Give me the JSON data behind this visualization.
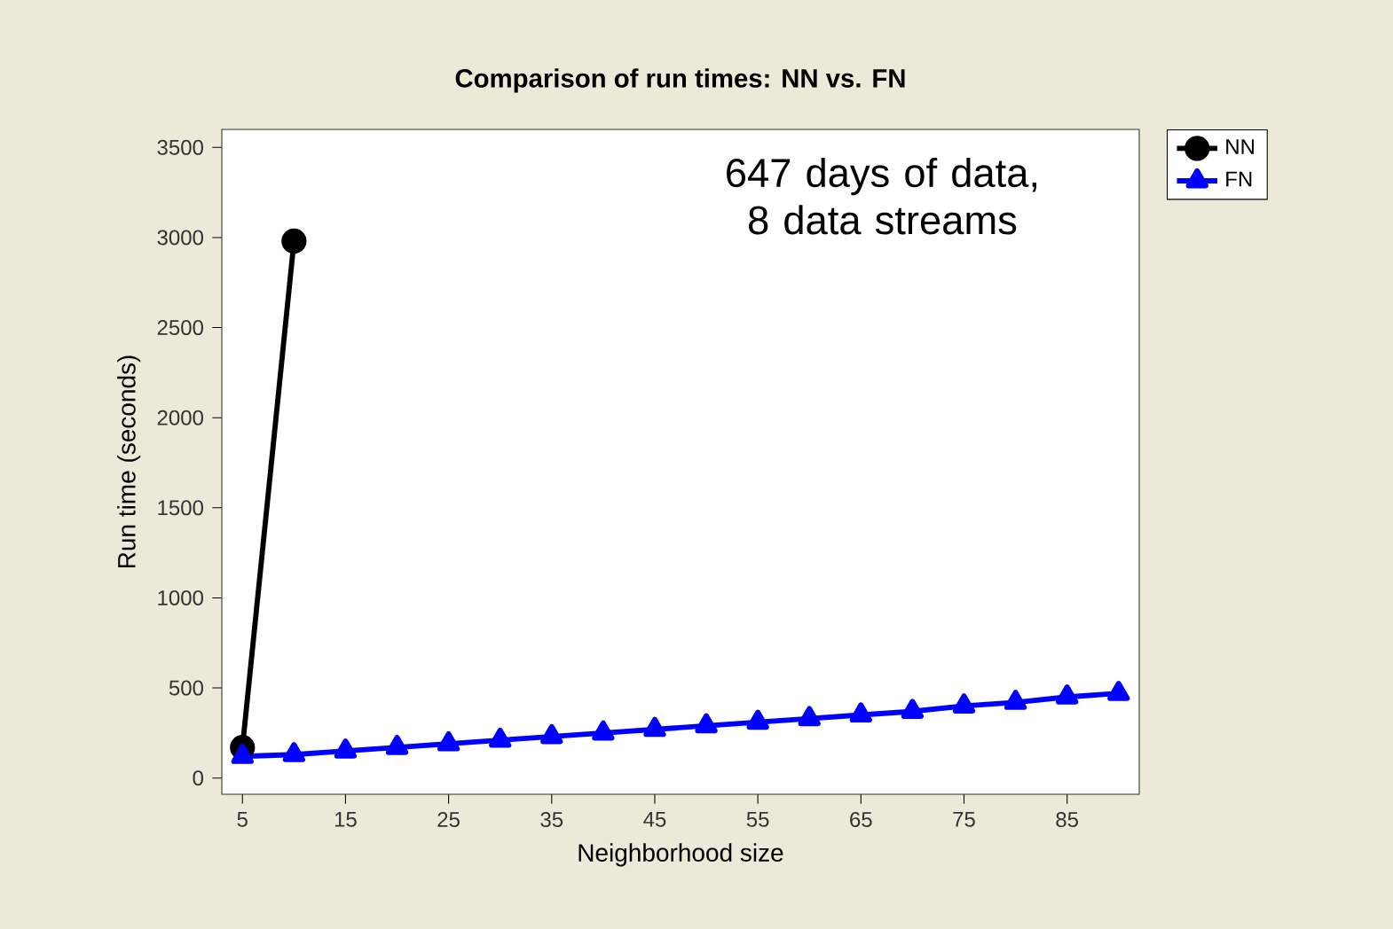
{
  "chart_data": {
    "type": "line",
    "title": "Comparison of run times: NN vs. FN",
    "xlabel": "Neighborhood size",
    "ylabel": "Run time (seconds)",
    "annotations": [
      "647 days of data, 8 data streams"
    ],
    "xlim": [
      3,
      92
    ],
    "xticks": [
      5,
      15,
      25,
      35,
      45,
      55,
      65,
      75,
      85
    ],
    "ylim": [
      -90,
      3600
    ],
    "yticks": [
      0,
      500,
      1000,
      1500,
      2000,
      2500,
      3000,
      3500
    ],
    "legend": "top right",
    "grid": false,
    "series": [
      {
        "name": "NN",
        "color": "#000000",
        "marker": "circle",
        "x": [
          5,
          10
        ],
        "values": [
          170,
          2980
        ]
      },
      {
        "name": "FN",
        "color": "#0000ff",
        "marker": "triangle",
        "x": [
          5,
          10,
          15,
          20,
          25,
          30,
          35,
          40,
          45,
          50,
          55,
          60,
          65,
          70,
          75,
          80,
          85,
          90
        ],
        "values": [
          120,
          130,
          150,
          170,
          190,
          210,
          230,
          250,
          270,
          290,
          310,
          330,
          350,
          370,
          400,
          420,
          450,
          470
        ]
      }
    ]
  }
}
